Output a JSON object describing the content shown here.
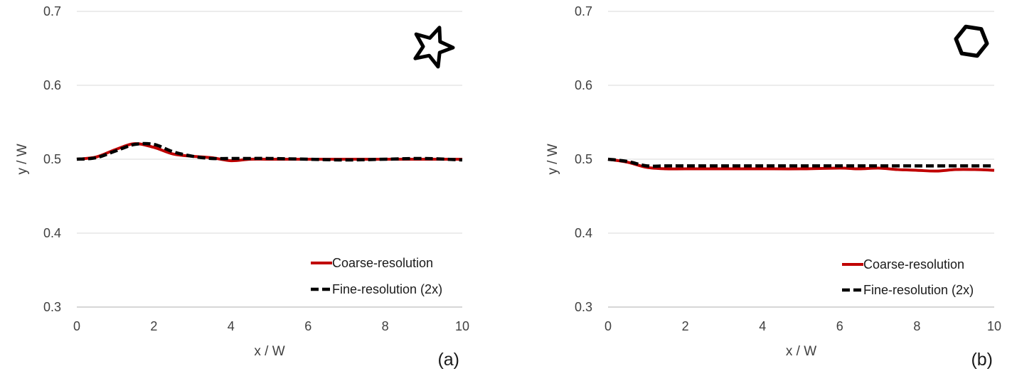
{
  "chart_data": [
    {
      "type": "line",
      "panel_label": "(a)",
      "shape_icon": "star-icon",
      "xlabel": "x / W",
      "ylabel": "y / W",
      "xlim": [
        0,
        10
      ],
      "ylim": [
        0.3,
        0.7
      ],
      "xticks": [
        "0",
        "2",
        "4",
        "6",
        "8",
        "10"
      ],
      "yticks": [
        "0.3",
        "0.4",
        "0.5",
        "0.6",
        "0.7"
      ],
      "grid": "horizontal",
      "legend_position": "bottom-right",
      "series": [
        {
          "name": "Coarse-resolution",
          "color": "#c00000",
          "style": "solid",
          "x": [
            0,
            0.5,
            1.0,
            1.5,
            2.0,
            2.5,
            3.0,
            3.5,
            4.0,
            4.5,
            5.0,
            6.0,
            7.0,
            8.0,
            9.0,
            10.0
          ],
          "y": [
            0.5,
            0.503,
            0.513,
            0.521,
            0.516,
            0.507,
            0.504,
            0.502,
            0.498,
            0.5,
            0.5,
            0.5,
            0.5,
            0.5,
            0.5,
            0.5
          ]
        },
        {
          "name": "Fine-resolution (2x)",
          "color": "#000000",
          "style": "dashed",
          "x": [
            0,
            0.5,
            1.0,
            1.5,
            2.0,
            2.5,
            3.0,
            3.5,
            4.0,
            4.5,
            5.0,
            6.0,
            7.0,
            8.0,
            9.0,
            10.0
          ],
          "y": [
            0.5,
            0.502,
            0.511,
            0.52,
            0.52,
            0.51,
            0.504,
            0.501,
            0.501,
            0.501,
            0.501,
            0.5,
            0.499,
            0.5,
            0.501,
            0.499
          ]
        }
      ]
    },
    {
      "type": "line",
      "panel_label": "(b)",
      "shape_icon": "hexagon-icon",
      "xlabel": "x / W",
      "ylabel": "y / W",
      "xlim": [
        0,
        10
      ],
      "ylim": [
        0.3,
        0.7
      ],
      "xticks": [
        "0",
        "2",
        "4",
        "6",
        "8",
        "10"
      ],
      "yticks": [
        "0.3",
        "0.4",
        "0.5",
        "0.6",
        "0.7"
      ],
      "grid": "horizontal",
      "legend_position": "bottom-right",
      "series": [
        {
          "name": "Coarse-resolution",
          "color": "#c00000",
          "style": "solid",
          "x": [
            0,
            0.5,
            1.0,
            1.5,
            2.0,
            3.0,
            4.0,
            5.0,
            6.0,
            6.5,
            7.0,
            7.5,
            8.0,
            8.5,
            9.0,
            9.5,
            10.0
          ],
          "y": [
            0.5,
            0.496,
            0.489,
            0.487,
            0.487,
            0.487,
            0.487,
            0.487,
            0.488,
            0.487,
            0.488,
            0.486,
            0.485,
            0.484,
            0.486,
            0.486,
            0.485
          ]
        },
        {
          "name": "Fine-resolution (2x)",
          "color": "#000000",
          "style": "dashed",
          "x": [
            0,
            0.5,
            1.0,
            1.5,
            2.0,
            4.0,
            6.0,
            8.0,
            10.0
          ],
          "y": [
            0.5,
            0.497,
            0.491,
            0.491,
            0.491,
            0.491,
            0.491,
            0.491,
            0.491
          ]
        }
      ]
    }
  ]
}
